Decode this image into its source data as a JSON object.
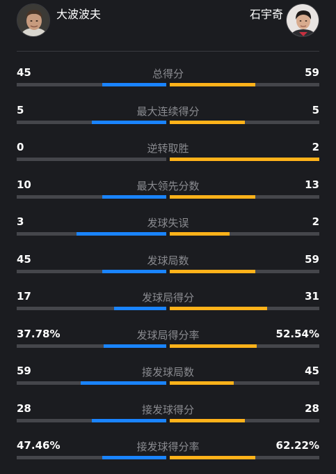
{
  "players": {
    "left": {
      "name": "大波波夫",
      "avatar_icon": "player-avatar-photo"
    },
    "right": {
      "name": "石宇奇",
      "avatar_icon": "player-avatar-photo"
    }
  },
  "colors": {
    "left": "#1a84ff",
    "right": "#ffb21a",
    "track": "#45464b"
  },
  "stats": [
    {
      "label": "总得分",
      "left": "45",
      "right": "59",
      "left_share": 0.43,
      "right_share": 0.57
    },
    {
      "label": "最大连续得分",
      "left": "5",
      "right": "5",
      "left_share": 0.5,
      "right_share": 0.5
    },
    {
      "label": "逆转取胜",
      "left": "0",
      "right": "2",
      "left_share": 0.0,
      "right_share": 1.0
    },
    {
      "label": "最大领先分数",
      "left": "10",
      "right": "13",
      "left_share": 0.43,
      "right_share": 0.57
    },
    {
      "label": "发球失误",
      "left": "3",
      "right": "2",
      "left_share": 0.6,
      "right_share": 0.4
    },
    {
      "label": "发球局数",
      "left": "45",
      "right": "59",
      "left_share": 0.43,
      "right_share": 0.57
    },
    {
      "label": "发球局得分",
      "left": "17",
      "right": "31",
      "left_share": 0.35,
      "right_share": 0.65
    },
    {
      "label": "发球局得分率",
      "left": "37.78%",
      "right": "52.54%",
      "left_share": 0.42,
      "right_share": 0.58
    },
    {
      "label": "接发球局数",
      "left": "59",
      "right": "45",
      "left_share": 0.57,
      "right_share": 0.43
    },
    {
      "label": "接发球得分",
      "left": "28",
      "right": "28",
      "left_share": 0.5,
      "right_share": 0.5
    },
    {
      "label": "接发球得分率",
      "left": "47.46%",
      "right": "62.22%",
      "left_share": 0.43,
      "right_share": 0.57
    }
  ]
}
